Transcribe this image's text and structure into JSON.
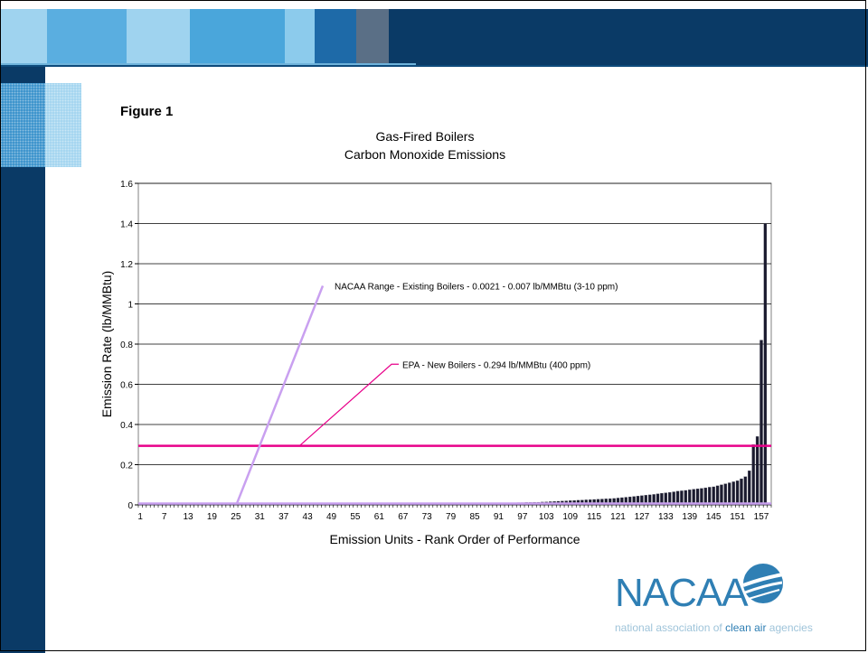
{
  "figure_label": "Figure 1",
  "logo": {
    "name": "NACAA",
    "tagline_pre": "national association of",
    "tagline_emph": "clean air",
    "tagline_post": "agencies"
  },
  "colors": {
    "banner_dark": "#0a3a66",
    "banner_light": "#9fd3ef",
    "bars": "#1a1a2e",
    "epa_line": "#e8008a",
    "nacaa_line": "#c9a0f0"
  },
  "chart_data": {
    "type": "bar",
    "title": "Gas-Fired Boilers",
    "subtitle": "Carbon Monoxide Emissions",
    "xlabel": "Emission Units - Rank Order of Performance",
    "ylabel": "Emission Rate (lb/MMBtu)",
    "ylim": [
      0,
      1.6
    ],
    "yticks": [
      "0",
      "0.2",
      "0.4",
      "0.6",
      "0.8",
      "1",
      "1.2",
      "1.4",
      "1.6"
    ],
    "grid": true,
    "categories_count": 159,
    "xtick_labels": [
      1,
      7,
      13,
      19,
      25,
      31,
      37,
      43,
      49,
      55,
      61,
      67,
      73,
      79,
      85,
      91,
      97,
      103,
      109,
      115,
      121,
      127,
      133,
      139,
      145,
      151,
      157
    ],
    "values": [
      0.001,
      0.001,
      0.001,
      0.001,
      0.001,
      0.001,
      0.001,
      0.001,
      0.001,
      0.001,
      0.001,
      0.001,
      0.001,
      0.001,
      0.001,
      0.001,
      0.001,
      0.001,
      0.001,
      0.001,
      0.001,
      0.001,
      0.001,
      0.001,
      0.001,
      0.001,
      0.001,
      0.001,
      0.001,
      0.001,
      0.002,
      0.002,
      0.002,
      0.002,
      0.002,
      0.002,
      0.002,
      0.002,
      0.002,
      0.002,
      0.002,
      0.002,
      0.002,
      0.002,
      0.002,
      0.002,
      0.002,
      0.002,
      0.002,
      0.002,
      0.003,
      0.003,
      0.003,
      0.003,
      0.003,
      0.003,
      0.003,
      0.003,
      0.003,
      0.003,
      0.004,
      0.004,
      0.004,
      0.004,
      0.004,
      0.004,
      0.004,
      0.004,
      0.004,
      0.004,
      0.005,
      0.005,
      0.005,
      0.005,
      0.005,
      0.005,
      0.005,
      0.006,
      0.006,
      0.006,
      0.006,
      0.006,
      0.007,
      0.007,
      0.007,
      0.007,
      0.008,
      0.008,
      0.008,
      0.008,
      0.009,
      0.009,
      0.01,
      0.01,
      0.01,
      0.011,
      0.011,
      0.012,
      0.012,
      0.013,
      0.013,
      0.014,
      0.015,
      0.016,
      0.017,
      0.018,
      0.019,
      0.02,
      0.021,
      0.022,
      0.023,
      0.024,
      0.025,
      0.026,
      0.027,
      0.028,
      0.029,
      0.03,
      0.031,
      0.032,
      0.034,
      0.036,
      0.038,
      0.04,
      0.042,
      0.044,
      0.046,
      0.048,
      0.05,
      0.052,
      0.055,
      0.058,
      0.06,
      0.062,
      0.065,
      0.068,
      0.07,
      0.072,
      0.075,
      0.078,
      0.08,
      0.082,
      0.085,
      0.088,
      0.09,
      0.095,
      0.1,
      0.105,
      0.11,
      0.115,
      0.12,
      0.13,
      0.14,
      0.17,
      0.3,
      0.34,
      0.82,
      1.4,
      0.01
    ],
    "reference_lines": [
      {
        "name": "EPA - New Boilers - 0.294 lb/MMBtu (400 ppm)",
        "y": 0.294
      },
      {
        "name": "NACAA Range - Existing Boilers - 0.0021 - 0.007 lb/MMBtu (3-10 ppm)",
        "y": 0.007
      }
    ]
  }
}
